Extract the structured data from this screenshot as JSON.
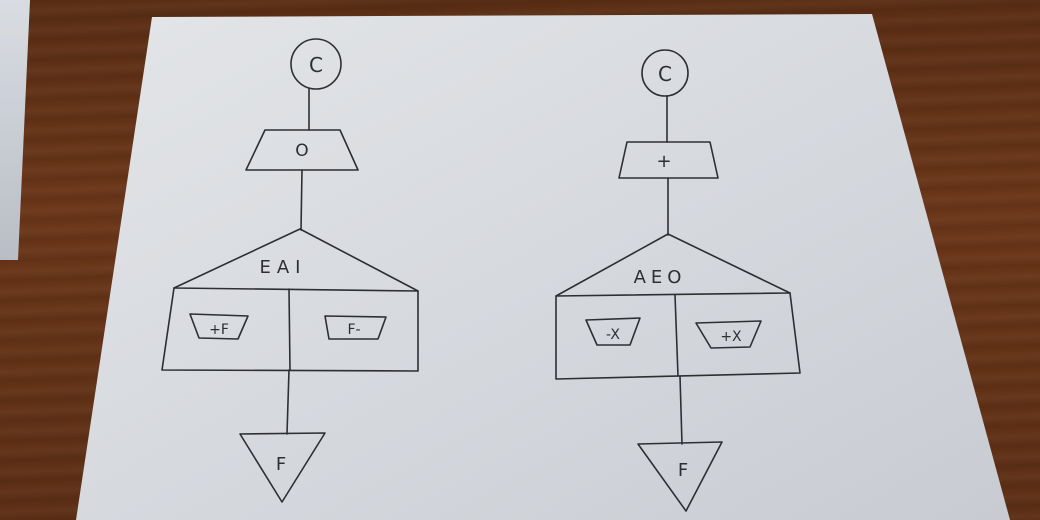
{
  "diagrams": {
    "left": {
      "start": "C",
      "process": "O",
      "decision": "EAI",
      "branch_left": "+F",
      "branch_right": "F-",
      "end": "F"
    },
    "right": {
      "start": "C",
      "process": "+",
      "decision": "AEO",
      "branch_left": "-X",
      "branch_right": "+X",
      "end": "F"
    }
  },
  "colors": {
    "paper": "#d7dadf",
    "ink": "#2f2f33",
    "table": "#5f3117"
  }
}
